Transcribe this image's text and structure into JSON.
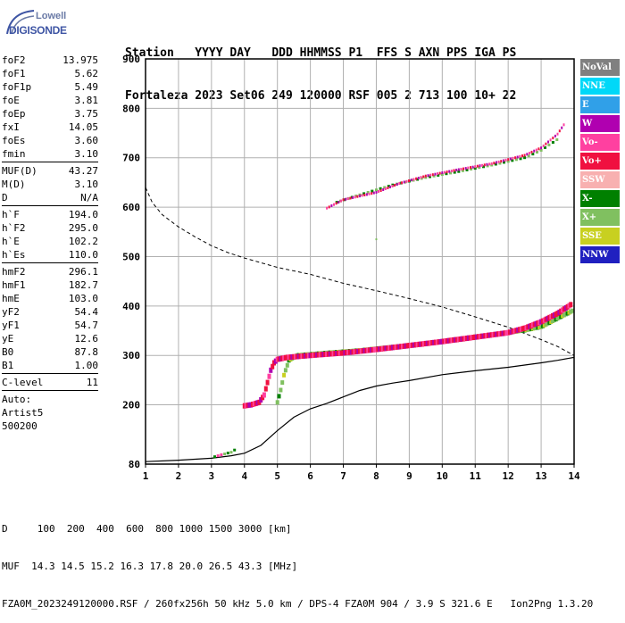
{
  "logo": {
    "line1": "Lowell",
    "line2": "DIGISONDE"
  },
  "header": {
    "line1": "Station   YYYY DAY   DDD HHMMSS P1  FFS S AXN PPS IGA PS",
    "line2": "Fortaleza 2023 Set06 249 120000 RSF 005 2 713 100 10+ 22"
  },
  "params": {
    "group1": [
      {
        "label": "foF2",
        "value": "13.975"
      },
      {
        "label": "foF1",
        "value": "5.62"
      },
      {
        "label": "foF1p",
        "value": "5.49"
      },
      {
        "label": "foE",
        "value": "3.81"
      },
      {
        "label": "foEp",
        "value": "3.75"
      },
      {
        "label": "fxI",
        "value": "14.05"
      },
      {
        "label": "foEs",
        "value": "3.60"
      },
      {
        "label": "fmin",
        "value": "3.10"
      }
    ],
    "group2": [
      {
        "label": "MUF(D)",
        "value": "43.27"
      },
      {
        "label": "M(D)",
        "value": "3.10"
      },
      {
        "label": "D",
        "value": "N/A"
      }
    ],
    "group3": [
      {
        "label": "h`F",
        "value": "194.0"
      },
      {
        "label": "h`F2",
        "value": "295.0"
      },
      {
        "label": "h`E",
        "value": "102.2"
      },
      {
        "label": "h`Es",
        "value": "110.0"
      }
    ],
    "group4": [
      {
        "label": "hmF2",
        "value": "296.1"
      },
      {
        "label": "hmF1",
        "value": "182.7"
      },
      {
        "label": "hmE",
        "value": "103.0"
      },
      {
        "label": "yF2",
        "value": "54.4"
      },
      {
        "label": "yF1",
        "value": "54.7"
      },
      {
        "label": "yE",
        "value": "12.6"
      },
      {
        "label": "B0",
        "value": "87.8"
      },
      {
        "label": "B1",
        "value": "1.00"
      }
    ],
    "group5": [
      {
        "label": "C-level",
        "value": "11"
      }
    ],
    "auto": [
      "Auto:",
      "Artist5",
      "500200"
    ]
  },
  "legend": [
    {
      "label": "NoVal",
      "color": "#808080"
    },
    {
      "label": "NNE",
      "color": "#00d8f8"
    },
    {
      "label": "E",
      "color": "#30a0e8"
    },
    {
      "label": "W",
      "color": "#b000b0"
    },
    {
      "label": "Vo-",
      "color": "#ff40a0"
    },
    {
      "label": "Vo+",
      "color": "#f01040"
    },
    {
      "label": "SSW",
      "color": "#f8b0b0"
    },
    {
      "label": "X-",
      "color": "#008000"
    },
    {
      "label": "X+",
      "color": "#80c060"
    },
    {
      "label": "SSE",
      "color": "#c8d020"
    },
    {
      "label": "NNW",
      "color": "#2020c0"
    }
  ],
  "footer": {
    "line1": "D     100  200  400  600  800 1000 1500 3000 [km]",
    "line2": "MUF  14.3 14.5 15.2 16.3 17.8 20.0 26.5 43.3 [MHz]",
    "line3": "FZA0M_2023249120000.RSF / 260fx256h 50 kHz 5.0 km / DPS-4 FZA0M 904 / 3.9 S 321.6 E   Ion2Png 1.3.20"
  },
  "chart_data": {
    "type": "scatter",
    "xlim": [
      1,
      14
    ],
    "ylim": [
      80,
      900
    ],
    "x_ticks": [
      "1",
      "2",
      "3",
      "4",
      "5",
      "6",
      "7",
      "8",
      "9",
      "10",
      "11",
      "12",
      "13",
      "14"
    ],
    "y_ticks": [
      "80",
      "200",
      "300",
      "400",
      "500",
      "600",
      "700",
      "800",
      "900"
    ],
    "grid": true,
    "traces": {
      "o_F": [
        [
          4.0,
          198
        ],
        [
          4.2,
          200
        ],
        [
          4.45,
          205
        ],
        [
          4.6,
          220
        ],
        [
          4.7,
          245
        ],
        [
          4.8,
          270
        ],
        [
          4.9,
          285
        ],
        [
          5.0,
          292
        ],
        [
          5.3,
          296
        ],
        [
          6.0,
          300
        ],
        [
          7.0,
          305
        ],
        [
          8.0,
          312
        ],
        [
          9.0,
          320
        ],
        [
          10.0,
          328
        ],
        [
          11.0,
          337
        ],
        [
          12.0,
          346
        ],
        [
          12.5,
          355
        ],
        [
          13.0,
          368
        ],
        [
          13.5,
          385
        ],
        [
          13.95,
          405
        ]
      ],
      "x_F": [
        [
          5.0,
          205
        ],
        [
          5.1,
          230
        ],
        [
          5.2,
          260
        ],
        [
          5.35,
          290
        ],
        [
          5.6,
          300
        ],
        [
          6.5,
          305
        ],
        [
          7.5,
          310
        ],
        [
          8.5,
          317
        ],
        [
          9.5,
          324
        ],
        [
          10.5,
          333
        ],
        [
          11.5,
          342
        ],
        [
          12.5,
          351
        ],
        [
          13.0,
          358
        ],
        [
          13.5,
          375
        ],
        [
          14.0,
          392
        ]
      ],
      "o_2F": [
        [
          6.5,
          598
        ],
        [
          7.0,
          615
        ],
        [
          8.0,
          630
        ],
        [
          8.7,
          648
        ],
        [
          9.5,
          663
        ],
        [
          10.5,
          676
        ],
        [
          11.5,
          688
        ],
        [
          12.5,
          705
        ],
        [
          13.0,
          720
        ],
        [
          13.5,
          748
        ],
        [
          13.75,
          773
        ]
      ],
      "x_2F": [
        [
          6.8,
          610
        ],
        [
          7.5,
          625
        ],
        [
          8.5,
          645
        ],
        [
          9.5,
          660
        ],
        [
          10.5,
          672
        ],
        [
          11.5,
          685
        ],
        [
          12.5,
          700
        ],
        [
          13.0,
          715
        ],
        [
          13.6,
          742
        ]
      ],
      "es": [
        [
          3.1,
          95
        ],
        [
          3.3,
          99
        ],
        [
          3.6,
          104
        ],
        [
          3.8,
          113
        ]
      ],
      "extra": [
        [
          8.0,
          535
        ]
      ]
    },
    "profile": [
      [
        1.0,
        85
      ],
      [
        2.0,
        88
      ],
      [
        3.0,
        92
      ],
      [
        3.6,
        97
      ],
      [
        4.0,
        102
      ],
      [
        4.5,
        118
      ],
      [
        5.0,
        148
      ],
      [
        5.5,
        175
      ],
      [
        6.0,
        192
      ],
      [
        6.5,
        203
      ],
      [
        7.0,
        216
      ],
      [
        7.5,
        229
      ],
      [
        8.0,
        238
      ],
      [
        8.5,
        244
      ],
      [
        9.0,
        249
      ],
      [
        10.0,
        261
      ],
      [
        11.0,
        269
      ],
      [
        12.0,
        276
      ],
      [
        13.0,
        285
      ],
      [
        13.5,
        290
      ],
      [
        14.0,
        296
      ]
    ],
    "muf_curve": [
      [
        1.0,
        640
      ],
      [
        1.2,
        610
      ],
      [
        1.5,
        585
      ],
      [
        2.0,
        560
      ],
      [
        2.5,
        540
      ],
      [
        3.0,
        522
      ],
      [
        3.5,
        508
      ],
      [
        4.0,
        497
      ],
      [
        5.0,
        478
      ],
      [
        6.0,
        464
      ],
      [
        7.0,
        446
      ],
      [
        8.0,
        431
      ],
      [
        9.0,
        415
      ],
      [
        10.0,
        398
      ],
      [
        11.0,
        378
      ],
      [
        12.0,
        357
      ],
      [
        13.0,
        332
      ],
      [
        13.5,
        318
      ],
      [
        14.0,
        300
      ]
    ]
  }
}
